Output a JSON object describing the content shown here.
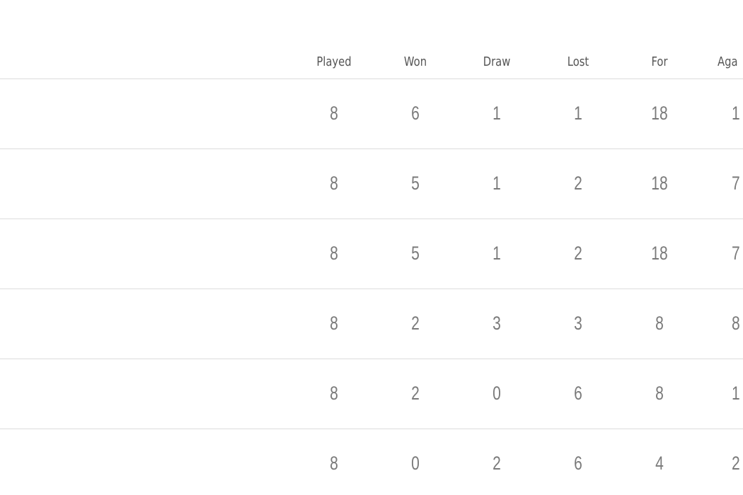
{
  "table": {
    "columns": [
      "Played",
      "Won",
      "Draw",
      "Lost",
      "For",
      "Aga"
    ],
    "rows": [
      [
        8,
        6,
        1,
        1,
        18,
        1
      ],
      [
        8,
        5,
        1,
        2,
        18,
        7
      ],
      [
        8,
        5,
        1,
        2,
        18,
        7
      ],
      [
        8,
        2,
        3,
        3,
        8,
        8
      ],
      [
        8,
        2,
        0,
        6,
        8,
        1
      ],
      [
        8,
        0,
        2,
        6,
        4,
        2
      ]
    ]
  }
}
